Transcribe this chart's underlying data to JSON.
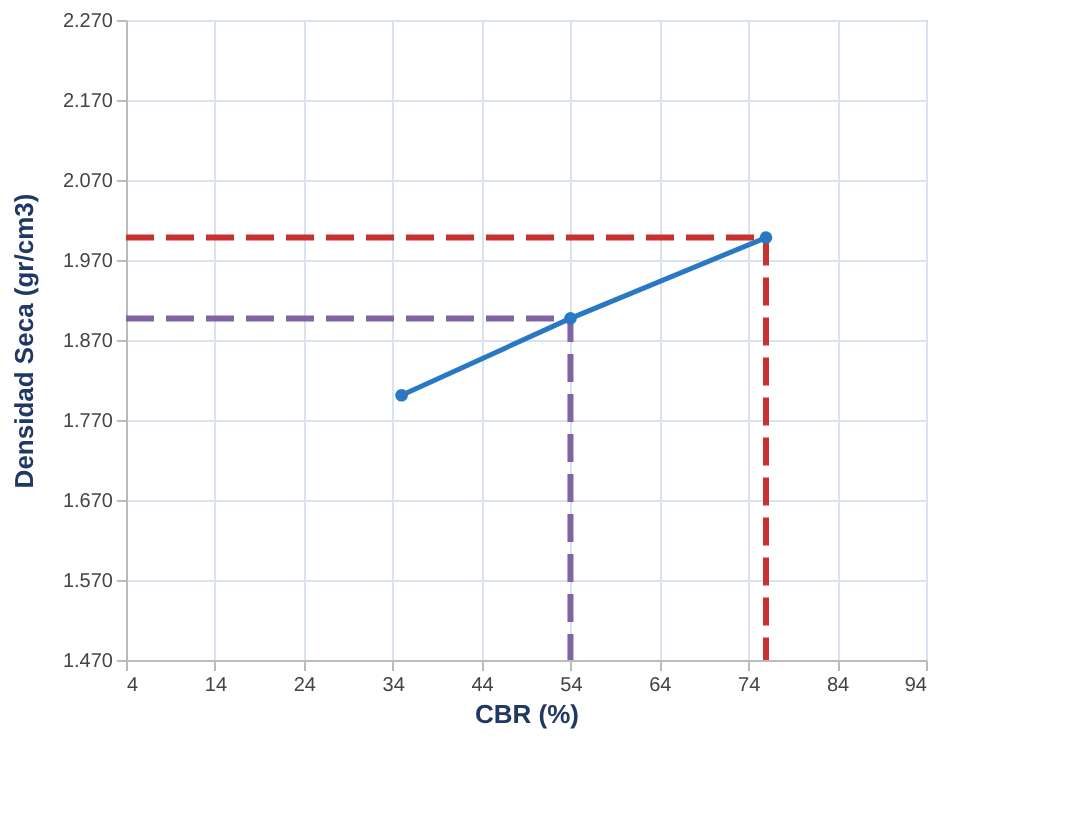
{
  "chart_data": {
    "type": "line",
    "xlabel": "CBR  (%)",
    "ylabel": "Densidad Seca (gr/cm3)",
    "xlim": [
      4,
      94
    ],
    "xticks": [
      4,
      14,
      24,
      34,
      44,
      54,
      64,
      74,
      84,
      94
    ],
    "ylim": [
      1.47,
      2.27
    ],
    "yticks": [
      {
        "value": 1.47,
        "label": "1.470"
      },
      {
        "value": 1.57,
        "label": "1.570"
      },
      {
        "value": 1.67,
        "label": "1.670"
      },
      {
        "value": 1.77,
        "label": "1.770"
      },
      {
        "value": 1.87,
        "label": "1.870"
      },
      {
        "value": 1.97,
        "label": "1.970"
      },
      {
        "value": 2.07,
        "label": "2.070"
      },
      {
        "value": 2.17,
        "label": "2.170"
      },
      {
        "value": 2.27,
        "label": "2.270"
      }
    ],
    "grid": true,
    "series": [
      {
        "color": "#c9312f",
        "x": [
          4,
          76,
          76
        ],
        "values": [
          1.998,
          1.998,
          1.47
        ],
        "line_style": "dashed",
        "marker": "none"
      },
      {
        "color": "#8064a2",
        "x": [
          4,
          54,
          54
        ],
        "values": [
          1.897,
          1.897,
          1.47
        ],
        "line_style": "dashed",
        "marker": "none"
      },
      {
        "color": "#2a78c4",
        "x": [
          35,
          54,
          76
        ],
        "values": [
          1.801,
          1.897,
          1.998
        ],
        "line_style": "solid",
        "marker": "circle"
      }
    ]
  }
}
